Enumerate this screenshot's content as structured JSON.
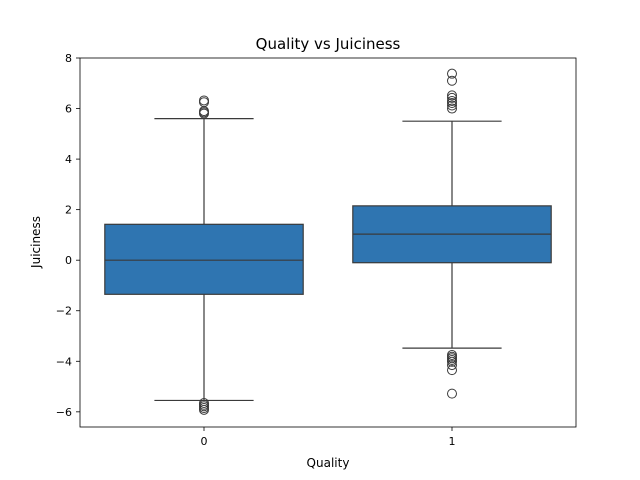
{
  "chart_data": {
    "type": "box",
    "title": "Quality vs Juiciness",
    "xlabel": "Quality",
    "ylabel": "Juiciness",
    "categories": [
      "0",
      "1"
    ],
    "ylim": [
      -6.6,
      8.0
    ],
    "yticks": [
      -6,
      -4,
      -2,
      0,
      2,
      4,
      6,
      8
    ],
    "ytick_labels": [
      "−6",
      "−4",
      "−2",
      "0",
      "2",
      "4",
      "6",
      "8"
    ],
    "box_color": "#2f75b1",
    "line_color": "#3a3a3a",
    "boxes": [
      {
        "category": "0",
        "whisker_low": -5.55,
        "q1": -1.35,
        "median": 0.0,
        "q3": 1.42,
        "whisker_high": 5.6,
        "outliers": [
          -5.65,
          -5.72,
          -5.78,
          -5.85,
          -5.92,
          5.8,
          5.85,
          5.9,
          6.25,
          6.32
        ]
      },
      {
        "category": "1",
        "whisker_low": -3.48,
        "q1": -0.1,
        "median": 1.03,
        "q3": 2.15,
        "whisker_high": 5.5,
        "outliers": [
          -5.28,
          -4.35,
          -4.15,
          -4.02,
          -3.95,
          -3.88,
          -3.82,
          -3.75,
          6.0,
          6.12,
          6.22,
          6.3,
          6.42,
          6.52,
          7.1,
          7.38
        ]
      }
    ]
  }
}
